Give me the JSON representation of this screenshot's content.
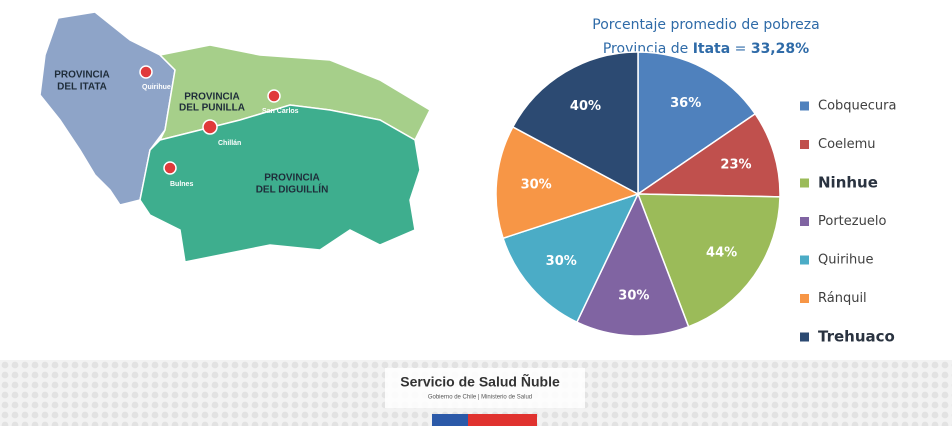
{
  "chart_data": {
    "type": "pie",
    "title": "Porcentaje promedio de pobreza",
    "subtitle_parts": [
      "Provincia de ",
      "Itata",
      " = ",
      "33,28%"
    ],
    "categories": [
      "Cobquecura",
      "Coelemu",
      "Ninhue",
      "Portezuelo",
      "Quirihue",
      "Ránquil",
      "Trehuaco"
    ],
    "values": [
      36,
      23,
      44,
      30,
      30,
      30,
      40
    ],
    "value_labels": [
      "36%",
      "23%",
      "44%",
      "30%",
      "30%",
      "30%",
      "40%"
    ],
    "colors": [
      "#4f81bd",
      "#c0504d",
      "#9bbb59",
      "#8064a2",
      "#4bacc6",
      "#f79646",
      "#2c4a72"
    ],
    "emphasized": [
      false,
      false,
      true,
      false,
      false,
      false,
      true
    ],
    "legend": "right"
  },
  "map": {
    "regions": [
      [
        "PROVINCIA",
        "DEL ITATA"
      ],
      [
        "PROVINCIA",
        "DEL PUNILLA"
      ],
      [
        "PROVINCIA",
        "DEL DIGUILLÍN"
      ]
    ],
    "cities": [
      "Quirihue",
      "San Carlos",
      "Chillán",
      "Bulnes"
    ]
  },
  "footer": {
    "org": "Servicio de Salud Ñuble",
    "sub": "Gobierno de Chile | Ministerio de Salud"
  }
}
